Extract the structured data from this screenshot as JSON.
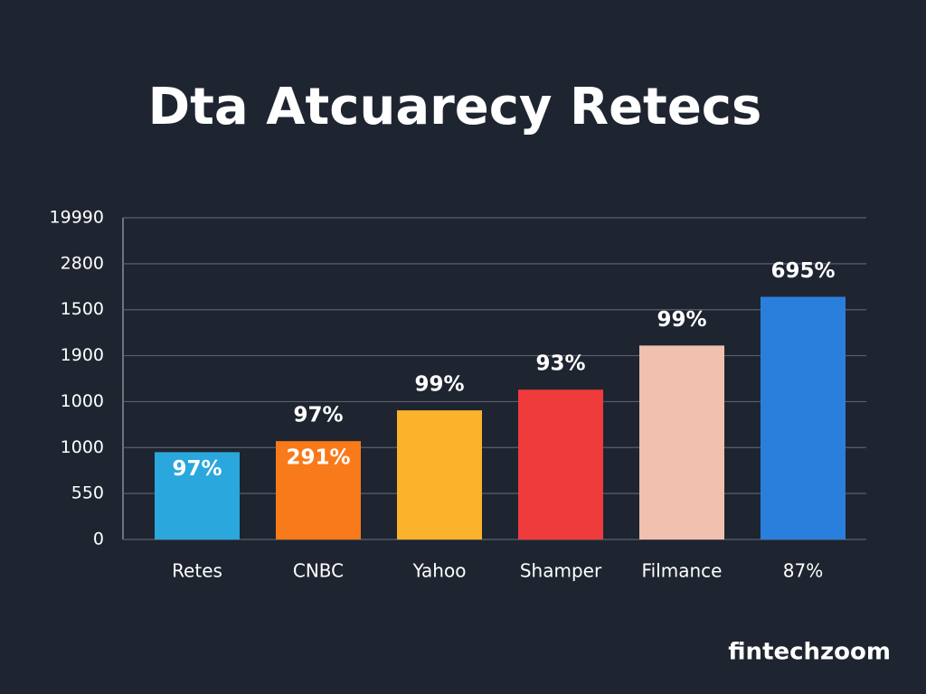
{
  "chart_data": {
    "type": "bar",
    "title": "Dta Atcuarecy Retecs",
    "categories": [
      "Retes",
      "CNBC",
      "Yahoo",
      "Shamper",
      "Filmance",
      "87%"
    ],
    "values": [
      1.9,
      2.14,
      2.81,
      3.26,
      4.22,
      5.28
    ],
    "colors": [
      "#2aa7dc",
      "#f97a1a",
      "#fbb32c",
      "#ef3b3c",
      "#f1c0ae",
      "#2a7fdc"
    ],
    "ylim": [
      0,
      7
    ],
    "yticks": [
      0,
      {
        "value": 1,
        "label": "550"
      },
      {
        "value": 2,
        "label": "1000"
      },
      {
        "value": 3,
        "label": "1000"
      },
      {
        "value": 4,
        "label": "1900"
      },
      {
        "value": 5,
        "label": "1500"
      },
      {
        "value": 6,
        "label": "2800"
      },
      {
        "value": 7,
        "label": "19990"
      }
    ],
    "grid": true,
    "annotations": [
      {
        "text": "97%",
        "category": 0,
        "position": "inside"
      },
      {
        "text": "97%",
        "category": 1,
        "position": "above"
      },
      {
        "text": "291%",
        "category": 1,
        "position": "inside"
      },
      {
        "text": "99%",
        "category": 2,
        "position": "above"
      },
      {
        "text": "93%",
        "category": 3,
        "position": "above"
      },
      {
        "text": "99%",
        "category": 4,
        "position": "above"
      },
      {
        "text": "695%",
        "category": 5,
        "position": "above"
      }
    ]
  },
  "watermark": "fintechzoom"
}
